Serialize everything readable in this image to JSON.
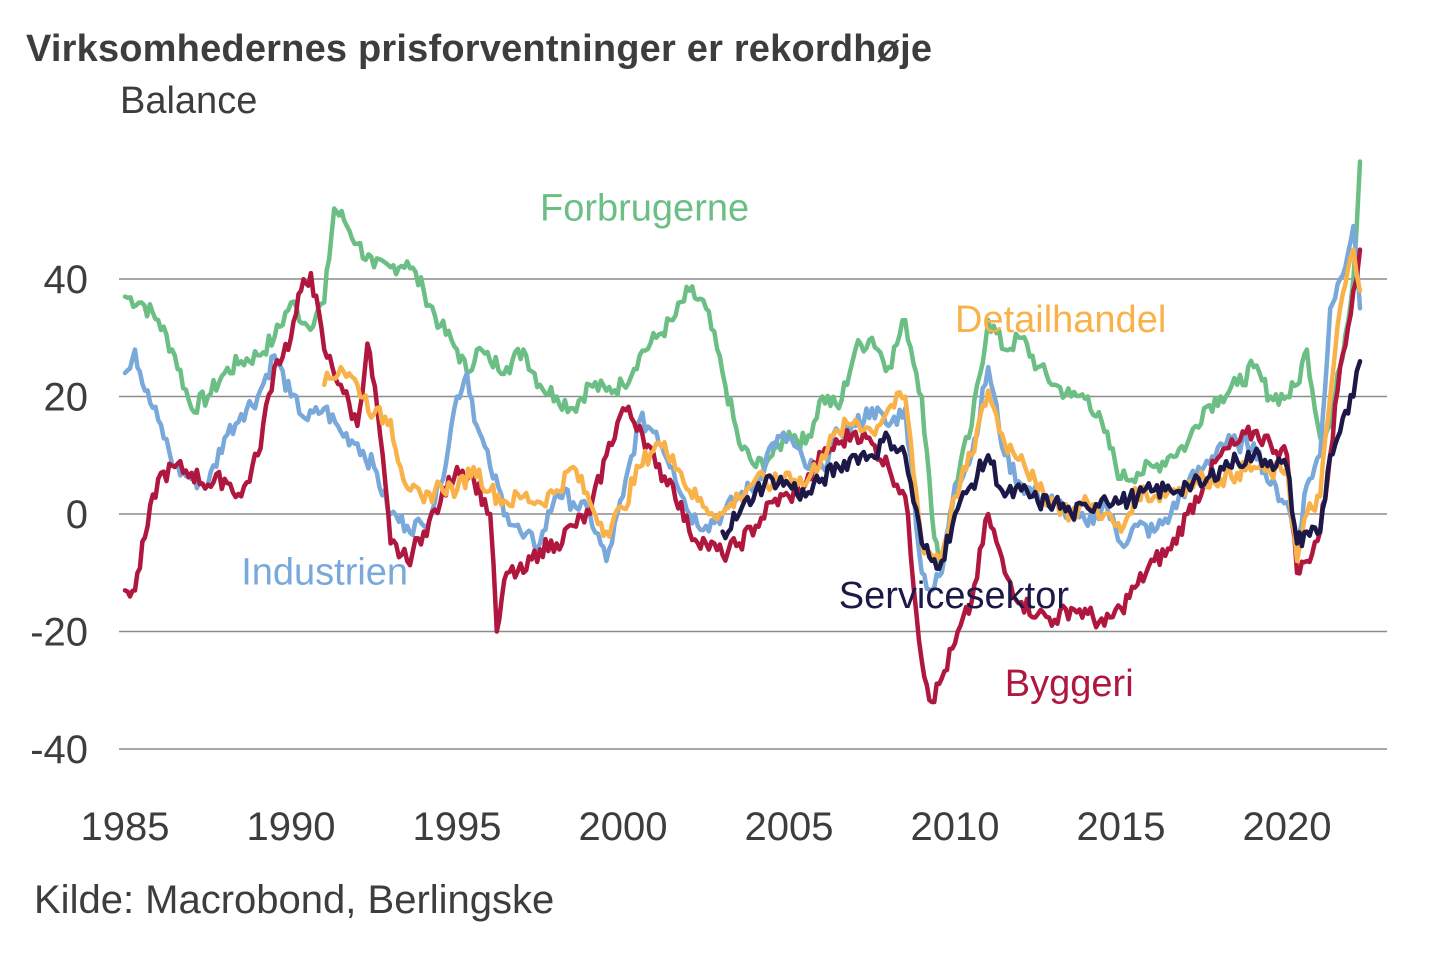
{
  "title": "Virksomhedernes prisforventninger er rekordhøje",
  "source": "Kilde: Macrobond, Berlingske",
  "chart_data": {
    "type": "line",
    "title": "Virksomhedernes prisforventninger er rekordhøje",
    "ylabel": "Balance",
    "xlabel": "",
    "xlim": [
      1985,
      2023.5
    ],
    "ylim": [
      -40,
      60
    ],
    "yticks": [
      40,
      20,
      0,
      -20,
      -40
    ],
    "ytick_labels": [
      "40",
      "20",
      "0",
      "-20",
      "-40"
    ],
    "xticks": [
      1985,
      1990,
      1995,
      2000,
      2005,
      2010,
      2015,
      2020
    ],
    "xtick_labels": [
      "1985",
      "1990",
      "1995",
      "2000",
      "2005",
      "2010",
      "2015",
      "2020"
    ],
    "grid": "horizontal",
    "legend": "inline-labels",
    "source": "Kilde: Macrobond, Berlingske",
    "series": [
      {
        "name": "Forbrugerne",
        "color": "#6bbf85",
        "label_pos": [
          1997.5,
          50
        ],
        "x": [
          1985,
          1985.5,
          1986,
          1986.5,
          1987,
          1987.5,
          1988,
          1988.5,
          1989,
          1989.5,
          1990,
          1990.5,
          1991,
          1991.3,
          1991.6,
          1992,
          1992.5,
          1993,
          1993.5,
          1994,
          1994.5,
          1995,
          1995.3,
          1995.6,
          1996,
          1996.5,
          1997,
          1997.5,
          1998,
          1998.5,
          1999,
          1999.5,
          2000,
          2000.5,
          2001,
          2001.5,
          2002,
          2002.5,
          2003,
          2003.5,
          2004,
          2004.5,
          2005,
          2005.5,
          2006,
          2006.5,
          2007,
          2007.5,
          2008,
          2008.5,
          2009,
          2009.3,
          2009.6,
          2010,
          2010.5,
          2011,
          2011.5,
          2012,
          2012.5,
          2013,
          2013.5,
          2014,
          2014.5,
          2015,
          2015.5,
          2016,
          2016.5,
          2017,
          2017.5,
          2018,
          2018.5,
          2019,
          2019.5,
          2020,
          2020.3,
          2020.6,
          2021,
          2021.3,
          2021.6,
          2022,
          2022.2
        ],
        "y": [
          37,
          36,
          33,
          27,
          18,
          20,
          24,
          26,
          27,
          30,
          36,
          32,
          36,
          52,
          50,
          46,
          42,
          42,
          43,
          38,
          32,
          28,
          24,
          28,
          26,
          25,
          28,
          22,
          20,
          18,
          22,
          21,
          22,
          27,
          30,
          33,
          38,
          35,
          24,
          12,
          8,
          10,
          14,
          12,
          20,
          18,
          28,
          30,
          25,
          33,
          20,
          0,
          -10,
          5,
          15,
          33,
          28,
          30,
          25,
          22,
          20,
          20,
          14,
          6,
          7,
          8,
          10,
          12,
          18,
          20,
          22,
          25,
          20,
          20,
          22,
          28,
          13,
          15,
          25,
          40,
          60
        ]
      },
      {
        "name": "Industrien",
        "color": "#79a8db",
        "label_pos": [
          1988.5,
          -12
        ],
        "x": [
          1985,
          1985.3,
          1985.6,
          1986,
          1986.5,
          1987,
          1987.5,
          1988,
          1988.5,
          1989,
          1989.5,
          1990,
          1990.5,
          1991,
          1991.5,
          1992,
          1992.5,
          1993,
          1993.5,
          1994,
          1994.5,
          1995,
          1995.3,
          1995.6,
          1996,
          1996.5,
          1997,
          1997.5,
          1998,
          1998.5,
          1999,
          1999.5,
          2000,
          2000.5,
          2001,
          2001.5,
          2002,
          2002.5,
          2003,
          2003.5,
          2004,
          2004.5,
          2005,
          2005.5,
          2006,
          2006.5,
          2007,
          2007.5,
          2008,
          2008.5,
          2009,
          2009.3,
          2009.6,
          2010,
          2010.5,
          2011,
          2011.5,
          2012,
          2012.5,
          2013,
          2013.5,
          2014,
          2014.5,
          2015,
          2015.5,
          2016,
          2016.5,
          2017,
          2017.5,
          2018,
          2018.5,
          2019,
          2019.5,
          2020,
          2020.3,
          2020.6,
          2021,
          2021.3,
          2021.6,
          2022,
          2022.2
        ],
        "y": [
          24,
          28,
          21,
          16,
          8,
          6,
          5,
          13,
          17,
          20,
          27,
          20,
          16,
          18,
          14,
          12,
          8,
          0,
          -2,
          -2,
          5,
          20,
          24,
          15,
          8,
          0,
          -4,
          -5,
          4,
          2,
          0,
          -8,
          3,
          16,
          14,
          8,
          0,
          -2,
          0,
          3,
          5,
          12,
          13,
          8,
          8,
          14,
          15,
          18,
          15,
          18,
          -10,
          -13,
          -10,
          5,
          10,
          25,
          10,
          5,
          3,
          2,
          0,
          -2,
          2,
          -5,
          -2,
          -3,
          0,
          5,
          8,
          12,
          12,
          12,
          5,
          2,
          -5,
          5,
          10,
          35,
          40,
          49,
          35
        ]
      },
      {
        "name": "Byggeri",
        "color": "#b0173f",
        "label_pos": [
          2011.5,
          -31
        ],
        "x": [
          1985,
          1985.3,
          1985.6,
          1986,
          1986.5,
          1987,
          1987.5,
          1988,
          1988.5,
          1989,
          1989.5,
          1990,
          1990.3,
          1990.6,
          1991,
          1991.5,
          1992,
          1992.3,
          1992.6,
          1993,
          1993.5,
          1994,
          1994.5,
          1995,
          1995.5,
          1996,
          1996.2,
          1996.5,
          1997,
          1997.5,
          1998,
          1998.5,
          1999,
          1999.5,
          2000,
          2000.5,
          2001,
          2001.5,
          2002,
          2002.5,
          2003,
          2003.5,
          2004,
          2004.5,
          2005,
          2005.5,
          2006,
          2006.5,
          2007,
          2007.5,
          2008,
          2008.5,
          2009,
          2009.3,
          2009.6,
          2010,
          2010.5,
          2011,
          2011.5,
          2012,
          2012.5,
          2013,
          2013.5,
          2014,
          2014.5,
          2015,
          2015.5,
          2016,
          2016.5,
          2017,
          2017.5,
          2018,
          2018.5,
          2019,
          2019.5,
          2020,
          2020.3,
          2020.6,
          2021,
          2021.3,
          2021.6,
          2022,
          2022.2
        ],
        "y": [
          -13,
          -13,
          -4,
          6,
          8,
          7,
          5,
          6,
          3,
          10,
          25,
          30,
          38,
          41,
          28,
          22,
          15,
          29,
          18,
          -5,
          -8,
          -3,
          2,
          8,
          6,
          0,
          -20,
          -10,
          -10,
          -6,
          -5,
          -2,
          0,
          10,
          18,
          15,
          8,
          5,
          -3,
          -5,
          -7,
          -5,
          -2,
          2,
          3,
          5,
          10,
          12,
          14,
          12,
          8,
          3,
          -25,
          -32,
          -28,
          -22,
          -15,
          0,
          -10,
          -15,
          -17,
          -18,
          -16,
          -17,
          -19,
          -16,
          -12,
          -8,
          -6,
          0,
          5,
          10,
          12,
          14,
          12,
          10,
          -10,
          -8,
          -3,
          10,
          25,
          38,
          45
        ]
      },
      {
        "name": "Detailhandel",
        "color": "#f9b24a",
        "label_pos": [
          2010,
          31
        ],
        "x": [
          1991,
          1991.5,
          1992,
          1992.5,
          1993,
          1993.3,
          1993.6,
          1994,
          1994.5,
          1995,
          1995.5,
          1996,
          1996.5,
          1997,
          1997.5,
          1998,
          1998.5,
          1999,
          1999.5,
          2000,
          2000.5,
          2001,
          2001.5,
          2002,
          2002.5,
          2003,
          2003.5,
          2004,
          2004.5,
          2005,
          2005.5,
          2006,
          2006.5,
          2007,
          2007.5,
          2008,
          2008.5,
          2009,
          2009.3,
          2009.6,
          2010,
          2010.5,
          2011,
          2011.5,
          2012,
          2012.5,
          2013,
          2013.5,
          2014,
          2014.5,
          2015,
          2015.5,
          2016,
          2016.5,
          2017,
          2017.5,
          2018,
          2018.5,
          2019,
          2019.5,
          2020,
          2020.3,
          2020.6,
          2021,
          2021.3,
          2021.6,
          2022,
          2022.2
        ],
        "y": [
          22,
          25,
          22,
          17,
          16,
          8,
          4,
          2,
          5,
          4,
          8,
          4,
          2,
          3,
          2,
          4,
          8,
          2,
          -3,
          1,
          8,
          12,
          10,
          4,
          1,
          0,
          3,
          6,
          5,
          7,
          5,
          10,
          14,
          16,
          14,
          18,
          20,
          -5,
          -7,
          -7,
          3,
          10,
          21,
          12,
          10,
          4,
          2,
          0,
          2,
          0,
          -3,
          4,
          3,
          4,
          5,
          6,
          6,
          7,
          8,
          7,
          8,
          -8,
          0,
          3,
          20,
          35,
          45,
          38
        ]
      },
      {
        "name": "Servicesektor",
        "color": "#1c1847",
        "label_pos": [
          2006.5,
          -16
        ],
        "x": [
          2003,
          2003.5,
          2004,
          2004.5,
          2005,
          2005.5,
          2006,
          2006.5,
          2007,
          2007.5,
          2008,
          2008.5,
          2009,
          2009.3,
          2009.6,
          2010,
          2010.5,
          2011,
          2011.5,
          2012,
          2012.5,
          2013,
          2013.5,
          2014,
          2014.5,
          2015,
          2015.5,
          2016,
          2016.5,
          2017,
          2017.5,
          2018,
          2018.5,
          2019,
          2019.5,
          2020,
          2020.3,
          2020.6,
          2021,
          2021.3,
          2021.6,
          2022,
          2022.2
        ],
        "y": [
          -3,
          0,
          4,
          6,
          5,
          3,
          6,
          8,
          10,
          10,
          13,
          10,
          -5,
          -8,
          -8,
          0,
          5,
          10,
          3,
          4,
          2,
          2,
          0,
          1,
          3,
          2,
          3,
          4,
          4,
          5,
          5,
          8,
          9,
          10,
          9,
          8,
          -5,
          -3,
          -3,
          10,
          14,
          20,
          26
        ]
      }
    ]
  }
}
